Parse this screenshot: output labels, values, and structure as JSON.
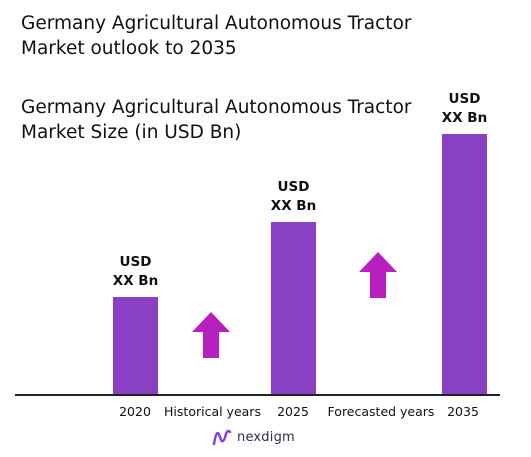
{
  "title": "Germany Agricultural Autonomous Tractor Market outlook to 2035",
  "subtitle": "Germany Agricultural Autonomous Tractor Market Size (in USD Bn)",
  "chart_data": {
    "type": "bar",
    "categories": [
      "2020",
      "2025",
      "2035"
    ],
    "series": [
      {
        "values": [
          3.1,
          5.5,
          8.3
        ]
      }
    ],
    "data_labels": [
      "USD XX Bn",
      "USD XX Bn",
      "USD XX Bn"
    ],
    "ylim": [
      0,
      9
    ],
    "grid": false,
    "bar_color": "#8a40c2",
    "annotations": [
      "Historical years",
      "Forecasted years"
    ]
  },
  "labels": {
    "bar1_line1": "USD",
    "bar1_line2": "XX Bn",
    "bar2_line1": "USD",
    "bar2_line2": "XX Bn",
    "bar3_line1": "USD",
    "bar3_line2": "XX Bn"
  },
  "arrow_color": "#b81fbf",
  "brand": {
    "name": "nexdigm",
    "icon": "nexdigm-logo-icon"
  }
}
